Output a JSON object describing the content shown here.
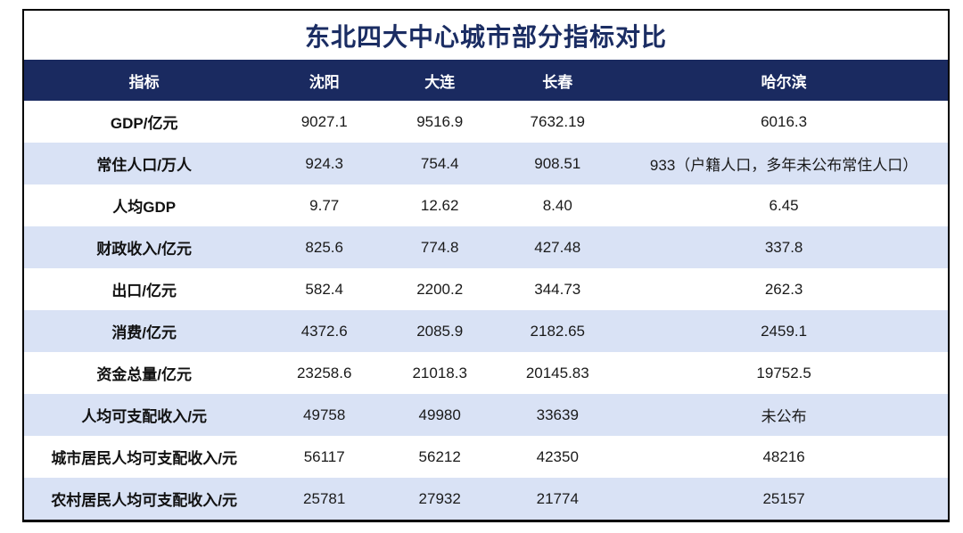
{
  "title": "东北四大中心城市部分指标对比",
  "colors": {
    "header_bg": "#1a2a60",
    "stripe_bg": "#d9e2f5",
    "title_text": "#1b2d63",
    "header_text": "#ffffff",
    "body_text": "#1a1a1a",
    "frame_border": "#000000"
  },
  "chart_data": {
    "type": "table",
    "title": "东北四大中心城市部分指标对比",
    "columns": [
      "指标",
      "沈阳",
      "大连",
      "长春",
      "哈尔滨"
    ],
    "rows": [
      [
        "GDP/亿元",
        "9027.1",
        "9516.9",
        "7632.19",
        "6016.3"
      ],
      [
        "常住人口/万人",
        "924.3",
        "754.4",
        "908.51",
        "933（户籍人口，多年未公布常住人口）"
      ],
      [
        "人均GDP",
        "9.77",
        "12.62",
        "8.40",
        "6.45"
      ],
      [
        "财政收入/亿元",
        "825.6",
        "774.8",
        "427.48",
        "337.8"
      ],
      [
        "出口/亿元",
        "582.4",
        "2200.2",
        "344.73",
        "262.3"
      ],
      [
        "消费/亿元",
        "4372.6",
        "2085.9",
        "2182.65",
        "2459.1"
      ],
      [
        "资金总量/亿元",
        "23258.6",
        "21018.3",
        "20145.83",
        "19752.5"
      ],
      [
        "人均可支配收入/元",
        "49758",
        "49980",
        "33639",
        "未公布"
      ],
      [
        "城市居民人均可支配收入/元",
        "56117",
        "56212",
        "42350",
        "48216"
      ],
      [
        "农村居民人均可支配收入/元",
        "25781",
        "27932",
        "21774",
        "25157"
      ]
    ]
  }
}
